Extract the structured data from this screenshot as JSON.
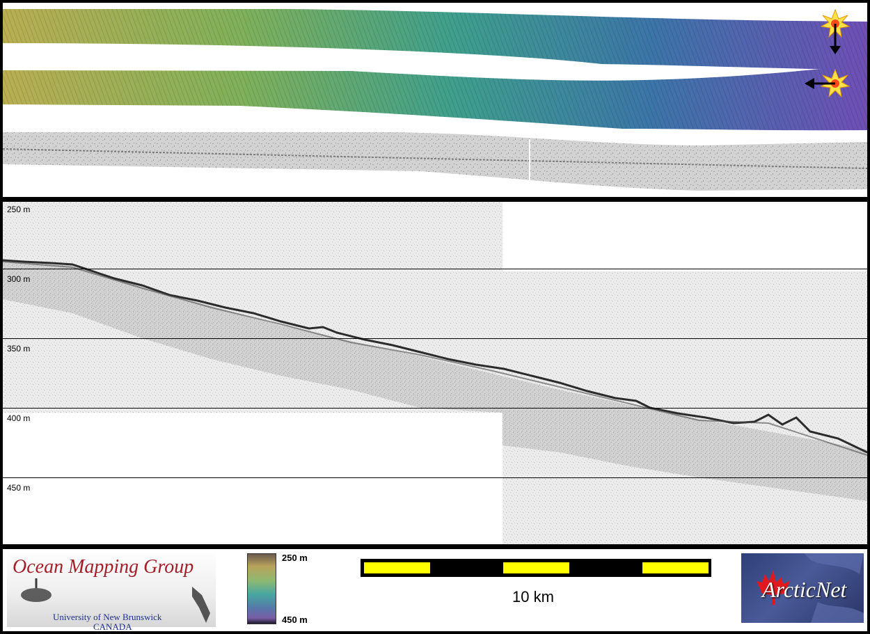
{
  "depth_labels": [
    "250 m",
    "300 m",
    "350 m",
    "400 m",
    "450 m"
  ],
  "footer": {
    "group_title": "Ocean Mapping Group",
    "university": "University of New Brunswick",
    "country": "CANADA",
    "colorbar_top": "250 m",
    "colorbar_bottom": "450 m",
    "scale_label": "10 km",
    "partner_logo_text": "ArcticNet"
  },
  "icons": {
    "marker_1": "sun-marker-icon",
    "marker_2": "sun-marker-icon",
    "arrow_1": "arrow-down-icon",
    "arrow_2": "arrow-left-icon"
  },
  "colors": {
    "frame": "#000000",
    "seabed_shallow": "#b9ae52",
    "seabed_deep": "#6e4fb5",
    "scalebar_fill": "#ffff00",
    "omg_title": "#a3202a",
    "omg_subtitle": "#1e2f8c"
  }
}
